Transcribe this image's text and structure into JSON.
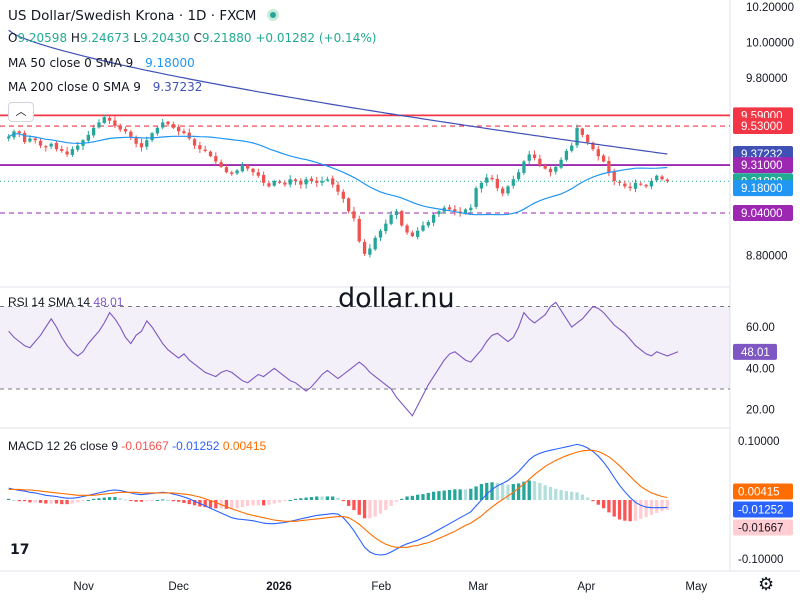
{
  "header": {
    "title": "US Dollar/Swedish Krona · 1D · FXCM",
    "ohlc": {
      "o_label": "O",
      "o_value": "9.20598",
      "h_label": "H",
      "h_value": "9.24673",
      "l_label": "L",
      "l_value": "9.20430",
      "c_label": "C",
      "c_value": "9.21880",
      "change": "+0.01282 (+0.14%)"
    },
    "ma50": {
      "label": "MA 50 close 0 SMA 9",
      "value": "9.18000"
    },
    "ma200": {
      "label": "MA 200 close 0 SMA 9",
      "value": "9.37232"
    },
    "collapse_icon": "chevron-up-icon"
  },
  "watermark": "dollar.nu",
  "logo_text": "17",
  "settings_icon": "gear-icon",
  "colors": {
    "up": "#26a69a",
    "down": "#ef5350",
    "ma50": "#2196f3",
    "ma200": "#3f51b5",
    "red_level": "#f23645",
    "purple_level": "#9c27b0",
    "rsi": "#7e57c2",
    "macd": "#2962ff",
    "signal": "#ff6d00",
    "price_label": "#22ab94"
  },
  "chart_data": [
    {
      "type": "candlestick",
      "title": "US Dollar/Swedish Krona · 1D · FXCM",
      "ylim": [
        8.64,
        10.24
      ],
      "y_ticks": [
        "10.20000",
        "10.00000",
        "9.80000",
        "8.80000"
      ],
      "x_ticks": [
        "Nov",
        "Dec",
        "2026",
        "Feb",
        "Mar",
        "Apr",
        "May"
      ],
      "price_close": [
        9.47,
        9.5,
        9.49,
        9.44,
        9.46,
        9.45,
        9.42,
        9.41,
        9.43,
        9.4,
        9.39,
        9.37,
        9.4,
        9.42,
        9.45,
        9.48,
        9.52,
        9.55,
        9.58,
        9.56,
        9.53,
        9.51,
        9.5,
        9.47,
        9.43,
        9.41,
        9.45,
        9.49,
        9.52,
        9.55,
        9.54,
        9.52,
        9.5,
        9.49,
        9.46,
        9.42,
        9.4,
        9.39,
        9.36,
        9.33,
        9.3,
        9.27,
        9.26,
        9.28,
        9.31,
        9.29,
        9.27,
        9.25,
        9.21,
        9.19,
        9.22,
        9.21,
        9.2,
        9.23,
        9.22,
        9.2,
        9.23,
        9.22,
        9.21,
        9.22,
        9.23,
        9.2,
        9.16,
        9.12,
        9.05,
        9.01,
        8.88,
        8.81,
        8.84,
        8.9,
        8.94,
        8.98,
        9.03,
        9.05,
        8.97,
        8.93,
        8.91,
        8.94,
        8.97,
        8.99,
        9.03,
        9.05,
        9.07,
        9.06,
        9.05,
        9.04,
        9.06,
        9.07,
        9.18,
        9.21,
        9.24,
        9.23,
        9.18,
        9.15,
        9.19,
        9.23,
        9.27,
        9.33,
        9.37,
        9.35,
        9.31,
        9.29,
        9.27,
        9.3,
        9.34,
        9.39,
        9.42,
        9.52,
        9.48,
        9.44,
        9.4,
        9.36,
        9.33,
        9.27,
        9.22,
        9.21,
        9.19,
        9.18,
        9.21,
        9.2,
        9.19,
        9.22,
        9.25,
        9.23,
        9.22
      ],
      "levels": [
        {
          "value": 9.59,
          "label": "9.59000",
          "style": "solid",
          "color": "#f23645"
        },
        {
          "value": 9.53,
          "label": "9.53000",
          "style": "dashed",
          "color": "#f23645"
        },
        {
          "value": 9.31,
          "label": "9.31000",
          "style": "solid",
          "color": "#9c27b0"
        },
        {
          "value": 9.04,
          "label": "9.04000",
          "style": "dashed",
          "color": "#9c27b0"
        }
      ],
      "last_price": {
        "value": 9.2188,
        "label": "9.21880"
      },
      "ma200": {
        "start": 10.07,
        "end": 9.37232,
        "label": "9.37232"
      },
      "ma50": {
        "label": "9.18000",
        "value": 9.18
      },
      "series": [
        {
          "name": "MA 50 close 0 SMA 9",
          "last": 9.18
        },
        {
          "name": "MA 200 close 0 SMA 9",
          "last": 9.37232
        }
      ]
    },
    {
      "type": "line",
      "title": "RSI 14 SMA 14",
      "value_label": "48.01",
      "ylim": [
        13,
        77
      ],
      "y_ticks": [
        "60.00",
        "40.00",
        "20.00"
      ],
      "bands": [
        70,
        30
      ],
      "values": [
        58,
        55,
        53,
        51,
        50,
        53,
        56,
        60,
        64,
        60,
        55,
        51,
        48,
        46,
        48,
        52,
        55,
        58,
        62,
        67,
        64,
        60,
        55,
        52,
        56,
        58,
        63,
        60,
        56,
        52,
        49,
        47,
        45,
        47,
        44,
        42,
        40,
        38,
        37,
        36,
        38,
        39,
        38,
        36,
        34,
        33,
        35,
        37,
        36,
        38,
        40,
        38,
        36,
        34,
        33,
        31,
        29,
        31,
        34,
        37,
        39,
        37,
        35,
        37,
        39,
        41,
        43,
        41,
        38,
        36,
        34,
        32,
        30,
        26,
        23,
        20,
        17,
        22,
        27,
        32,
        36,
        40,
        44,
        47,
        48,
        46,
        44,
        43,
        46,
        49,
        53,
        56,
        57,
        55,
        53,
        55,
        60,
        67,
        64,
        62,
        64,
        66,
        70,
        72,
        68,
        64,
        60,
        62,
        64,
        67,
        70,
        69,
        67,
        64,
        61,
        59,
        57,
        54,
        51,
        49,
        47,
        46,
        48,
        47,
        46,
        47,
        48
      ]
    },
    {
      "type": "bar",
      "title": "MACD 12 26 close 9",
      "ylim": [
        -0.115,
        0.115
      ],
      "y_ticks": [
        "0.10000",
        "-0.10000"
      ],
      "values_label": {
        "histogram": "-0.01667",
        "macd": "-0.01252",
        "signal": "0.00415"
      },
      "series": [
        {
          "name": "Histogram",
          "last": -0.01667
        },
        {
          "name": "MACD",
          "last": -0.01252
        },
        {
          "name": "Signal",
          "last": 0.00415
        }
      ],
      "macd": [
        0.02,
        0.018,
        0.016,
        0.015,
        0.013,
        0.012,
        0.01,
        0.008,
        0.007,
        0.006,
        0.004,
        0.003,
        0.003,
        0.004,
        0.006,
        0.008,
        0.01,
        0.012,
        0.014,
        0.016,
        0.017,
        0.016,
        0.014,
        0.012,
        0.01,
        0.009,
        0.01,
        0.011,
        0.012,
        0.013,
        0.012,
        0.01,
        0.008,
        0.005,
        0.002,
        -0.002,
        -0.006,
        -0.01,
        -0.014,
        -0.018,
        -0.022,
        -0.026,
        -0.03,
        -0.032,
        -0.033,
        -0.034,
        -0.035,
        -0.037,
        -0.039,
        -0.04,
        -0.04,
        -0.039,
        -0.038,
        -0.036,
        -0.034,
        -0.032,
        -0.03,
        -0.028,
        -0.026,
        -0.025,
        -0.024,
        -0.023,
        -0.024,
        -0.03,
        -0.04,
        -0.052,
        -0.066,
        -0.08,
        -0.088,
        -0.092,
        -0.093,
        -0.092,
        -0.088,
        -0.083,
        -0.078,
        -0.074,
        -0.071,
        -0.068,
        -0.064,
        -0.06,
        -0.055,
        -0.05,
        -0.045,
        -0.04,
        -0.035,
        -0.03,
        -0.025,
        -0.02,
        -0.01,
        0.0,
        0.01,
        0.018,
        0.024,
        0.028,
        0.033,
        0.04,
        0.048,
        0.058,
        0.068,
        0.075,
        0.079,
        0.082,
        0.084,
        0.086,
        0.088,
        0.09,
        0.092,
        0.094,
        0.092,
        0.088,
        0.082,
        0.074,
        0.064,
        0.052,
        0.038,
        0.025,
        0.014,
        0.004,
        -0.004,
        -0.009,
        -0.012,
        -0.013,
        -0.013,
        -0.013,
        -0.0125
      ],
      "signal": [
        0.018,
        0.018,
        0.018,
        0.017,
        0.017,
        0.016,
        0.015,
        0.014,
        0.013,
        0.012,
        0.011,
        0.01,
        0.009,
        0.008,
        0.008,
        0.008,
        0.008,
        0.009,
        0.01,
        0.011,
        0.012,
        0.013,
        0.013,
        0.013,
        0.013,
        0.012,
        0.012,
        0.012,
        0.012,
        0.012,
        0.012,
        0.012,
        0.011,
        0.01,
        0.009,
        0.007,
        0.005,
        0.002,
        -0.001,
        -0.004,
        -0.008,
        -0.011,
        -0.015,
        -0.018,
        -0.021,
        -0.024,
        -0.026,
        -0.028,
        -0.03,
        -0.032,
        -0.034,
        -0.035,
        -0.036,
        -0.036,
        -0.036,
        -0.035,
        -0.034,
        -0.033,
        -0.032,
        -0.031,
        -0.03,
        -0.029,
        -0.028,
        -0.028,
        -0.03,
        -0.035,
        -0.041,
        -0.049,
        -0.057,
        -0.064,
        -0.07,
        -0.075,
        -0.078,
        -0.08,
        -0.08,
        -0.08,
        -0.078,
        -0.077,
        -0.074,
        -0.072,
        -0.069,
        -0.065,
        -0.061,
        -0.057,
        -0.053,
        -0.048,
        -0.043,
        -0.039,
        -0.033,
        -0.027,
        -0.019,
        -0.012,
        -0.005,
        0.001,
        0.007,
        0.013,
        0.02,
        0.027,
        0.035,
        0.043,
        0.05,
        0.057,
        0.062,
        0.067,
        0.071,
        0.075,
        0.078,
        0.081,
        0.083,
        0.084,
        0.084,
        0.082,
        0.078,
        0.073,
        0.066,
        0.058,
        0.049,
        0.04,
        0.031,
        0.023,
        0.017,
        0.012,
        0.009,
        0.006,
        0.0042
      ]
    }
  ]
}
